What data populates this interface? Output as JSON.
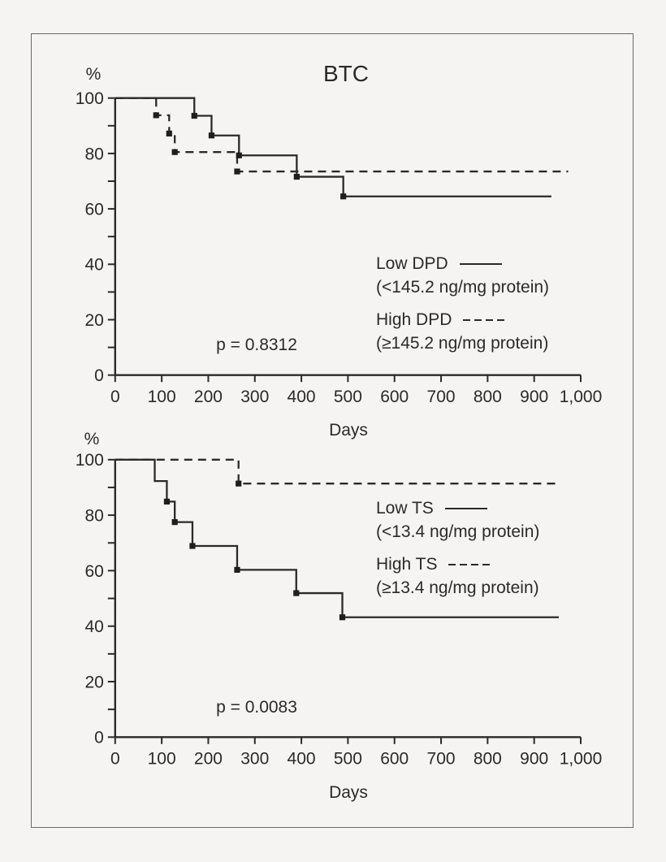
{
  "figure": {
    "background_color": "#f5f4f2",
    "ink_color": "#2b2a28",
    "frame_border_color": "#6a6a6a"
  },
  "chart_data": [
    {
      "type": "line",
      "variant": "kaplan_meier_survival_step",
      "title": "BTC",
      "xlabel": "Days",
      "ylabel": "%",
      "xlim": [
        0,
        1000
      ],
      "ylim": [
        0,
        100
      ],
      "grid": false,
      "legend_position": "center-right-inside",
      "xtick_values": [
        0,
        100,
        200,
        300,
        400,
        500,
        600,
        700,
        800,
        900,
        1000
      ],
      "xtick_labels": [
        "0",
        "100",
        "200",
        "300",
        "400",
        "500",
        "600",
        "700",
        "800",
        "900",
        "1,000"
      ],
      "ytick_major_values": [
        0,
        20,
        40,
        60,
        80,
        100
      ],
      "ytick_major_labels": [
        "0",
        "20",
        "40",
        "60",
        "80",
        "100"
      ],
      "ytick_minor_values": [
        10,
        30,
        50,
        70,
        90
      ],
      "p_value_text": "p = 0.8312",
      "series": [
        {
          "name": "Low DPD",
          "legend_label": "Low DPD",
          "legend_sub": "(<145.2 ng/mg protein)",
          "line_style": "solid",
          "steps": [
            [
              0,
              100
            ],
            [
              170,
              93.6
            ],
            [
              207,
              86.5
            ],
            [
              266,
              79.3
            ],
            [
              390,
              71.6
            ],
            [
              490,
              64.5
            ]
          ],
          "end_x": 937,
          "markers": [
            [
              170,
              93.6
            ],
            [
              207,
              86.5
            ],
            [
              266,
              79.3
            ],
            [
              390,
              71.6
            ],
            [
              490,
              64.5
            ]
          ]
        },
        {
          "name": "High DPD",
          "legend_label": "High DPD",
          "legend_sub": "(≥145.2 ng/mg protein)",
          "line_style": "dashed",
          "steps": [
            [
              0,
              100
            ],
            [
              88,
              93.8
            ],
            [
              116,
              87.2
            ],
            [
              128,
              80.5
            ],
            [
              262,
              73.5
            ]
          ],
          "end_x": 973,
          "markers": [
            [
              88,
              93.8
            ],
            [
              116,
              87.2
            ],
            [
              128,
              80.5
            ],
            [
              262,
              73.5
            ]
          ]
        }
      ]
    },
    {
      "type": "line",
      "variant": "kaplan_meier_survival_step",
      "title": "",
      "xlabel": "Days",
      "ylabel": "%",
      "xlim": [
        0,
        1000
      ],
      "ylim": [
        0,
        100
      ],
      "grid": false,
      "legend_position": "center-right-inside",
      "xtick_values": [
        0,
        100,
        200,
        300,
        400,
        500,
        600,
        700,
        800,
        900,
        1000
      ],
      "xtick_labels": [
        "0",
        "100",
        "200",
        "300",
        "400",
        "500",
        "600",
        "700",
        "800",
        "900",
        "1,000"
      ],
      "ytick_major_values": [
        0,
        20,
        40,
        60,
        80,
        100
      ],
      "ytick_major_labels": [
        "0",
        "20",
        "40",
        "60",
        "80",
        "100"
      ],
      "ytick_minor_values": [
        10,
        30,
        50,
        70,
        90
      ],
      "p_value_text": "p = 0.0083",
      "series": [
        {
          "name": "Low TS",
          "legend_label": "Low TS",
          "legend_sub": "(<13.4 ng/mg protein)",
          "line_style": "solid",
          "steps": [
            [
              0,
              100
            ],
            [
              85,
              92.3
            ],
            [
              111,
              84.9
            ],
            [
              128,
              77.5
            ],
            [
              166,
              68.9
            ],
            [
              262,
              60.3
            ],
            [
              389,
              51.9
            ],
            [
              488,
              43.2
            ]
          ],
          "end_x": 953,
          "markers": [
            [
              111,
              84.9
            ],
            [
              128,
              77.5
            ],
            [
              166,
              68.9
            ],
            [
              262,
              60.3
            ],
            [
              389,
              51.9
            ],
            [
              488,
              43.2
            ]
          ]
        },
        {
          "name": "High TS",
          "legend_label": "High TS",
          "legend_sub": "(≥13.4 ng/mg protein)",
          "line_style": "dashed",
          "steps": [
            [
              0,
              100
            ],
            [
              265,
              91.4
            ]
          ],
          "end_x": 953,
          "markers": [
            [
              265,
              91.4
            ]
          ]
        }
      ]
    }
  ]
}
